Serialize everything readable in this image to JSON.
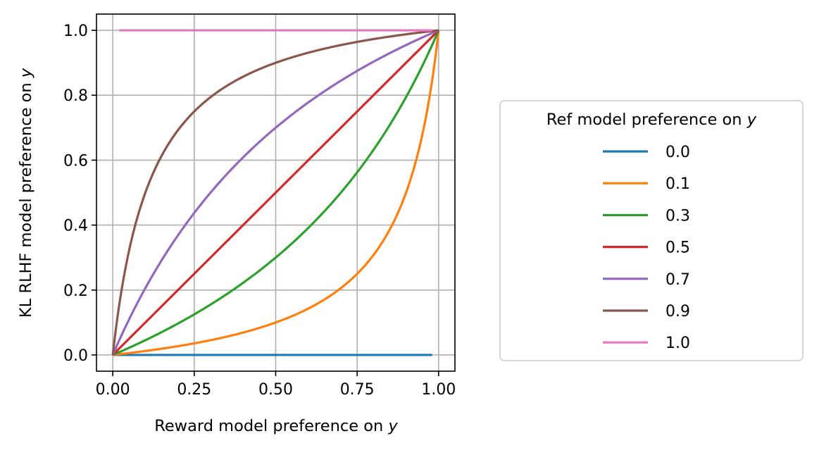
{
  "chart_data": {
    "type": "line",
    "xlabel": "Reward model preference on",
    "xlabel_var": "y",
    "ylabel": "KL RLHF model preference on",
    "ylabel_var": "y",
    "xlim": [
      -0.05,
      1.05
    ],
    "ylim": [
      -0.05,
      1.05
    ],
    "xticks": [
      "0.00",
      "0.25",
      "0.50",
      "0.75",
      "1.00"
    ],
    "xtick_values": [
      0,
      0.25,
      0.5,
      0.75,
      1.0
    ],
    "yticks": [
      "0.0",
      "0.2",
      "0.4",
      "0.6",
      "0.8",
      "1.0"
    ],
    "ytick_values": [
      0,
      0.2,
      0.4,
      0.6,
      0.8,
      1.0
    ],
    "grid": true,
    "legend": {
      "title": "Ref model preference on",
      "title_var": "y",
      "placement": "outside-right"
    },
    "series": [
      {
        "name": "0.0",
        "ref": 0.0,
        "color": "#1f77b4"
      },
      {
        "name": "0.1",
        "ref": 0.1,
        "color": "#ff7f0e"
      },
      {
        "name": "0.3",
        "ref": 0.3,
        "color": "#2ca02c"
      },
      {
        "name": "0.5",
        "ref": 0.5,
        "color": "#d62728"
      },
      {
        "name": "0.7",
        "ref": 0.7,
        "color": "#9467bd"
      },
      {
        "name": "0.9",
        "ref": 0.9,
        "color": "#8c564b"
      },
      {
        "name": "1.0",
        "ref": 1.0,
        "color": "#e377c2"
      }
    ],
    "x_range": [
      0.0,
      0.98
    ]
  }
}
